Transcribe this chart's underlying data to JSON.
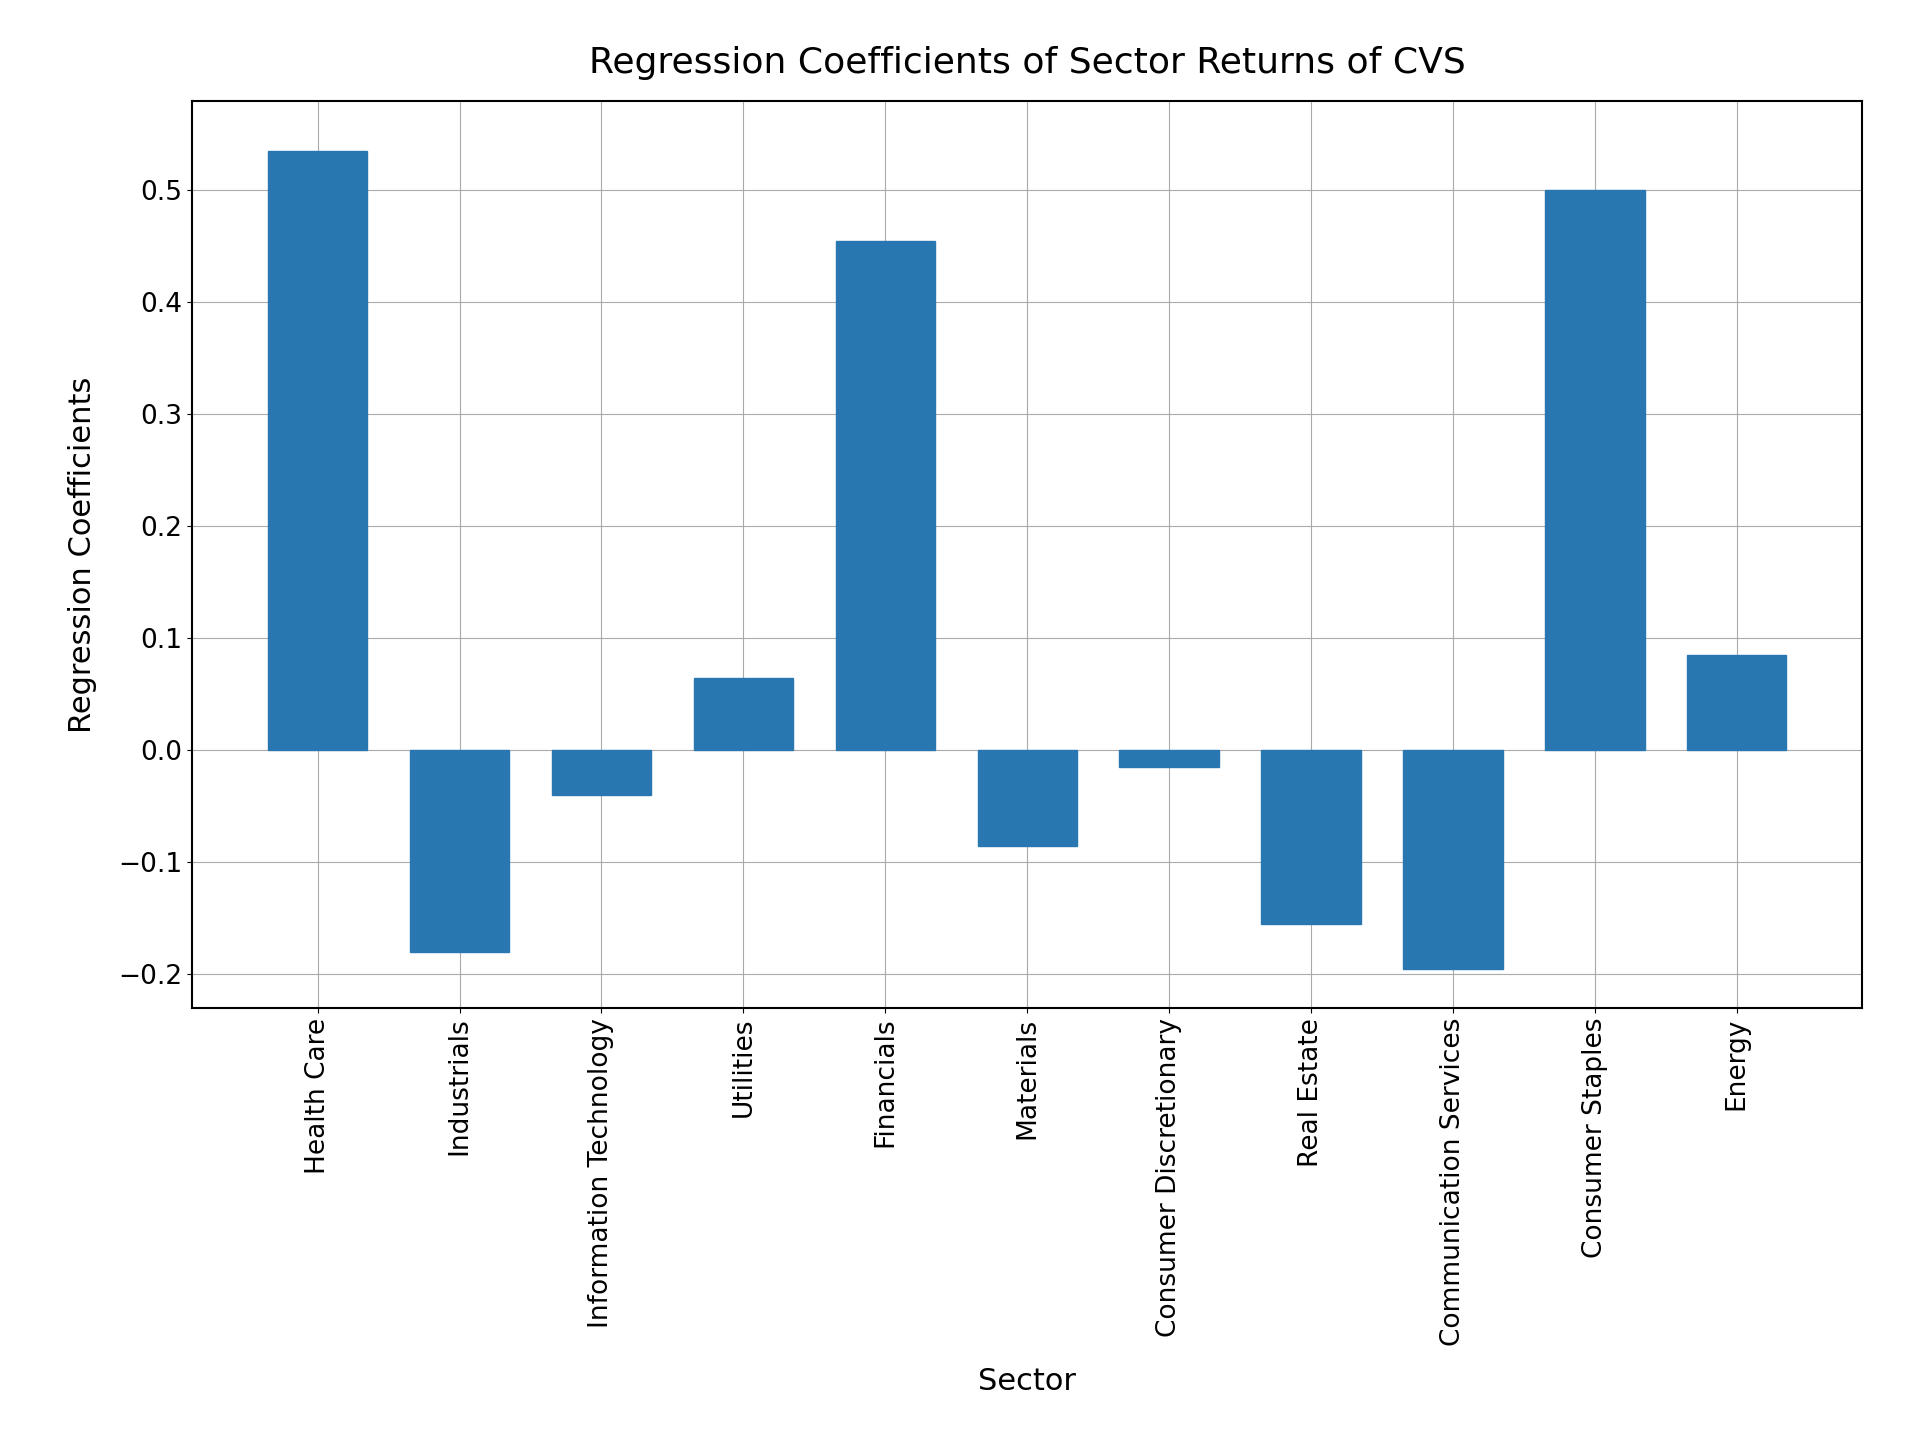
{
  "categories": [
    "Health Care",
    "Industrials",
    "Information Technology",
    "Utilities",
    "Financials",
    "Materials",
    "Consumer Discretionary",
    "Real Estate",
    "Communication Services",
    "Consumer Staples",
    "Energy"
  ],
  "values": [
    0.535,
    -0.18,
    -0.04,
    0.065,
    0.455,
    -0.085,
    -0.015,
    -0.155,
    -0.195,
    0.5,
    0.085
  ],
  "bar_color": "#2977b0",
  "title": "Regression Coefficients of Sector Returns of CVS",
  "xlabel": "Sector",
  "ylabel": "Regression Coefficients",
  "ylim": [
    -0.23,
    0.58
  ],
  "title_fontsize": 26,
  "label_fontsize": 22,
  "tick_fontsize": 19,
  "background_color": "#ffffff",
  "grid_color": "#aaaaaa",
  "yticks": [
    -0.2,
    -0.1,
    0.0,
    0.1,
    0.2,
    0.3,
    0.4,
    0.5
  ]
}
